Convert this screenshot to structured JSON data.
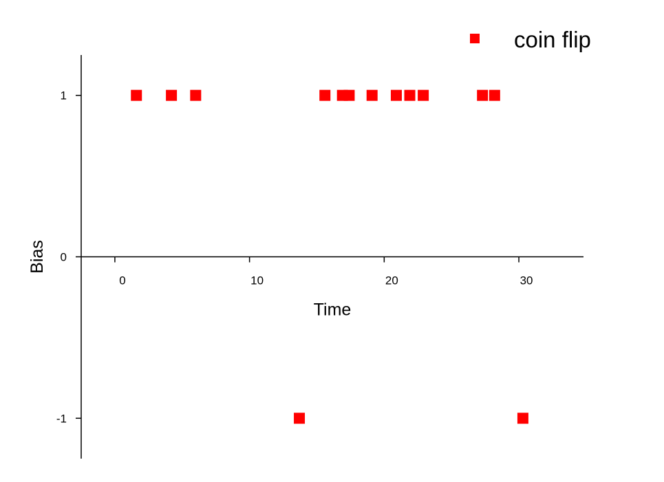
{
  "chart_data": {
    "type": "scatter",
    "xlabel": "Time",
    "ylabel": "Bias",
    "xlim": [
      -2.5,
      34.8
    ],
    "ylim": [
      -1.25,
      1.25
    ],
    "xticks": [
      0,
      10,
      20,
      30
    ],
    "yticks": [
      -1,
      0,
      1
    ],
    "xtick_labels": [
      "0",
      "10",
      "20",
      "30"
    ],
    "ytick_labels": [
      "-1",
      "0",
      "1"
    ],
    "grid": false,
    "legend_position": "top-right",
    "series": [
      {
        "name": "coin flip",
        "color": "#ff0000",
        "marker": "square",
        "x": [
          1.6,
          4.2,
          6.0,
          13.7,
          15.6,
          16.9,
          17.4,
          19.1,
          20.9,
          21.9,
          22.9,
          27.3,
          28.2,
          30.3
        ],
        "y": [
          1,
          1,
          1,
          -1,
          1,
          1,
          1,
          1,
          1,
          1,
          1,
          1,
          1,
          -1
        ]
      }
    ]
  }
}
